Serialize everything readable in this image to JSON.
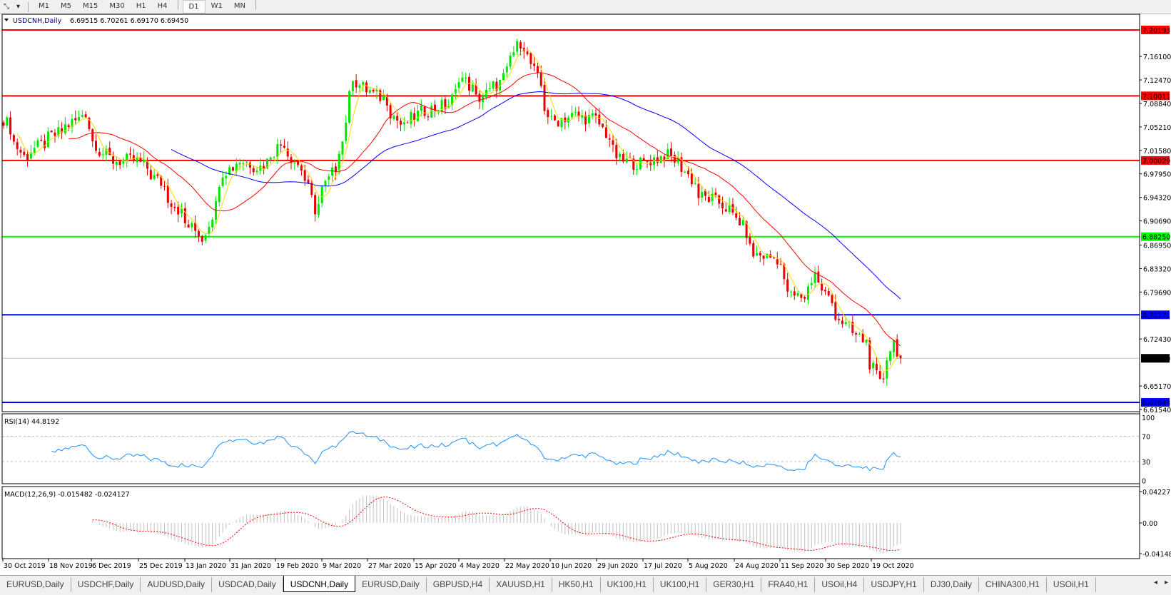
{
  "toolbar": {
    "tool_icons": [
      "line-tool-icon",
      "dropdown-arrow-icon"
    ],
    "timeframes": [
      "M1",
      "M5",
      "M15",
      "M30",
      "H1",
      "H4",
      "D1",
      "W1",
      "MN"
    ],
    "active_timeframe": "D1"
  },
  "chart_header": {
    "symbol": "USDCNH,Daily",
    "ohlc": "6.69515 6.70261 6.69170 6.69450"
  },
  "colors": {
    "bull_candle": "#00e600",
    "bear_candle": "#e60000",
    "ma_fast": "#ffd700",
    "ma_mid": "#ff0000",
    "ma_slow": "#0000ff",
    "rsi_line": "#1e90ff",
    "macd_histogram": "#c0c0c0",
    "macd_signal": "#ff0000"
  },
  "chart_data": [
    {
      "type": "candlestick",
      "title": "USDCNH,Daily",
      "last_close": 6.6945,
      "ylim": [
        6.6154,
        7.2019
      ],
      "y_ticks": [
        "7.16100",
        "7.12470",
        "7.08840",
        "7.05210",
        "7.01580",
        "6.97950",
        "6.94320",
        "6.90690",
        "6.86950",
        "6.83320",
        "6.79690",
        "6.72430",
        "6.65170",
        "6.61540"
      ],
      "x_tick_labels": [
        "30 Oct 2019",
        "18 Nov 2019",
        "6 Dec 2019",
        "25 Dec 2019",
        "13 Jan 2020",
        "31 Jan 2020",
        "19 Feb 2020",
        "9 Mar 2020",
        "27 Mar 2020",
        "15 Apr 2020",
        "4 May 2020",
        "22 May 2020",
        "10 Jun 2020",
        "29 Jun 2020",
        "17 Jul 2020",
        "5 Aug 2020",
        "24 Aug 2020",
        "11 Sep 2020",
        "30 Sep 2020",
        "19 Oct 2020"
      ],
      "approx_close": [
        [
          "2019-10-30",
          7.065
        ],
        [
          "2019-11-07",
          7.006
        ],
        [
          "2019-11-18",
          7.034
        ],
        [
          "2019-12-03",
          7.075
        ],
        [
          "2019-12-05",
          7.03
        ],
        [
          "2019-12-13",
          7.0
        ],
        [
          "2019-12-24",
          7.0
        ],
        [
          "2020-01-02",
          6.966
        ],
        [
          "2020-01-13",
          6.902
        ],
        [
          "2020-01-20",
          6.879
        ],
        [
          "2020-01-28",
          6.983
        ],
        [
          "2020-02-04",
          7.0
        ],
        [
          "2020-02-12",
          6.99
        ],
        [
          "2020-02-21",
          7.029
        ],
        [
          "2020-03-02",
          6.97
        ],
        [
          "2020-03-05",
          6.925
        ],
        [
          "2020-03-11",
          6.97
        ],
        [
          "2020-03-17",
          7.03
        ],
        [
          "2020-03-20",
          7.132
        ],
        [
          "2020-03-26",
          7.109
        ],
        [
          "2020-04-03",
          7.095
        ],
        [
          "2020-04-10",
          7.05
        ],
        [
          "2020-04-17",
          7.075
        ],
        [
          "2020-04-29",
          7.086
        ],
        [
          "2020-05-04",
          7.132
        ],
        [
          "2020-05-11",
          7.095
        ],
        [
          "2020-05-20",
          7.12
        ],
        [
          "2020-05-28",
          7.184
        ],
        [
          "2020-06-01",
          7.16
        ],
        [
          "2020-06-05",
          7.115
        ],
        [
          "2020-06-10",
          7.06
        ],
        [
          "2020-06-19",
          7.07
        ],
        [
          "2020-06-29",
          7.063
        ],
        [
          "2020-07-08",
          7.0
        ],
        [
          "2020-07-17",
          6.995
        ],
        [
          "2020-07-27",
          7.01
        ],
        [
          "2020-08-03",
          6.99
        ],
        [
          "2020-08-10",
          6.945
        ],
        [
          "2020-08-18",
          6.935
        ],
        [
          "2020-08-26",
          6.906
        ],
        [
          "2020-09-01",
          6.855
        ],
        [
          "2020-09-10",
          6.849
        ],
        [
          "2020-09-16",
          6.79
        ],
        [
          "2020-09-22",
          6.79
        ],
        [
          "2020-09-25",
          6.83
        ],
        [
          "2020-10-02",
          6.78
        ],
        [
          "2020-10-08",
          6.745
        ],
        [
          "2020-10-16",
          6.72
        ],
        [
          "2020-10-22",
          6.655
        ],
        [
          "2020-10-28",
          6.72
        ],
        [
          "2020-10-30",
          6.6945
        ]
      ],
      "horizontal_levels": [
        {
          "price": "7.20193",
          "color": "#ff0000"
        },
        {
          "price": "7.10011",
          "color": "#ff0000"
        },
        {
          "price": "7.00029",
          "color": "#ff0000"
        },
        {
          "price": "6.88250",
          "color": "#00ff00"
        },
        {
          "price": "6.76171",
          "color": "#0000ff"
        },
        {
          "price": "6.62643",
          "color": "#0000ff"
        }
      ],
      "current_price_label": "6.69450",
      "grid": false
    },
    {
      "type": "line",
      "title": "RSI(14) 44.8192",
      "ylim": [
        0,
        100
      ],
      "y_ticks": [
        "100",
        "70",
        "30",
        "0"
      ],
      "levels": [
        70,
        30
      ]
    },
    {
      "type": "bar",
      "title": "MACD(12,26,9) -0.015482 -0.024127",
      "ylim": [
        -0.04148,
        0.042275
      ],
      "y_ticks": [
        "0.042275",
        "0.00",
        "-0.04148"
      ]
    }
  ],
  "tabs": [
    {
      "label": "EURUSD,Daily"
    },
    {
      "label": "USDCHF,Daily"
    },
    {
      "label": "AUDUSD,Daily"
    },
    {
      "label": "USDCAD,Daily"
    },
    {
      "label": "USDCNH,Daily",
      "active": true
    },
    {
      "label": "EURUSD,Daily"
    },
    {
      "label": "GBPUSD,H4"
    },
    {
      "label": "XAUUSD,H1"
    },
    {
      "label": "HK50,H1"
    },
    {
      "label": "UK100,H1"
    },
    {
      "label": "UK100,H1"
    },
    {
      "label": "GER30,H1"
    },
    {
      "label": "FRA40,H1"
    },
    {
      "label": "USOil,H4"
    },
    {
      "label": "USDJPY,H1"
    },
    {
      "label": "DJ30,Daily"
    },
    {
      "label": "CHINA300,H1"
    },
    {
      "label": "USOil,H1"
    }
  ],
  "tab_scroll": {
    "left": "◂",
    "right": "▸"
  }
}
